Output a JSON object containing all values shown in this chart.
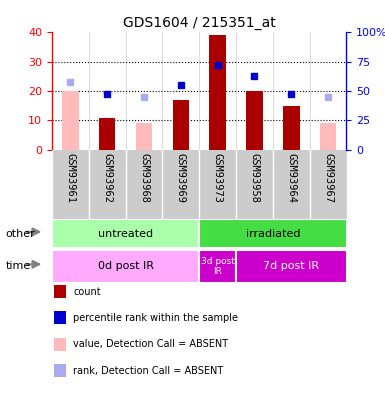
{
  "title": "GDS1604 / 215351_at",
  "samples": [
    "GSM93961",
    "GSM93962",
    "GSM93968",
    "GSM93969",
    "GSM93973",
    "GSM93958",
    "GSM93964",
    "GSM93967"
  ],
  "count_values": [
    0,
    11,
    0,
    17,
    39,
    20,
    15,
    0
  ],
  "count_absent": [
    20,
    0,
    0,
    0,
    0,
    0,
    0,
    0
  ],
  "rank_values": [
    0,
    19,
    0,
    22,
    29,
    25,
    19,
    0
  ],
  "rank_absent": [
    23,
    0,
    18,
    0,
    0,
    0,
    0,
    18
  ],
  "value_absent": [
    0,
    0,
    9,
    0,
    0,
    0,
    0,
    9
  ],
  "ylim_left": [
    0,
    40
  ],
  "ylim_right": [
    0,
    100
  ],
  "yticks_left": [
    0,
    10,
    20,
    30,
    40
  ],
  "yticks_right": [
    0,
    25,
    50,
    75,
    100
  ],
  "ytick_labels_right": [
    "0",
    "25",
    "50",
    "75",
    "100%"
  ],
  "groups_other": [
    {
      "label": "untreated",
      "xstart": 0,
      "xend": 4,
      "color": "#aaffaa"
    },
    {
      "label": "irradiated",
      "xstart": 4,
      "xend": 8,
      "color": "#44dd44"
    }
  ],
  "groups_time": [
    {
      "label": "0d post IR",
      "xstart": 0,
      "xend": 4,
      "color": "#ffaaff",
      "text_color": "#000000"
    },
    {
      "label": "3d post\nIR",
      "xstart": 4,
      "xend": 5,
      "color": "#cc00cc",
      "text_color": "#ffffff"
    },
    {
      "label": "7d post IR",
      "xstart": 5,
      "xend": 8,
      "color": "#cc00cc",
      "text_color": "#ffffff"
    }
  ],
  "bar_color_dark_red": "#aa0000",
  "bar_color_pink": "#ffbbbb",
  "bar_color_blue": "#0000cc",
  "bar_color_light_blue": "#aaaaee",
  "bg_color_labels": "#cccccc",
  "plot_bg": "#ffffff",
  "legend_items": [
    {
      "color": "#aa0000",
      "label": "count"
    },
    {
      "color": "#0000cc",
      "label": "percentile rank within the sample"
    },
    {
      "color": "#ffbbbb",
      "label": "value, Detection Call = ABSENT"
    },
    {
      "color": "#aaaaee",
      "label": "rank, Detection Call = ABSENT"
    }
  ]
}
